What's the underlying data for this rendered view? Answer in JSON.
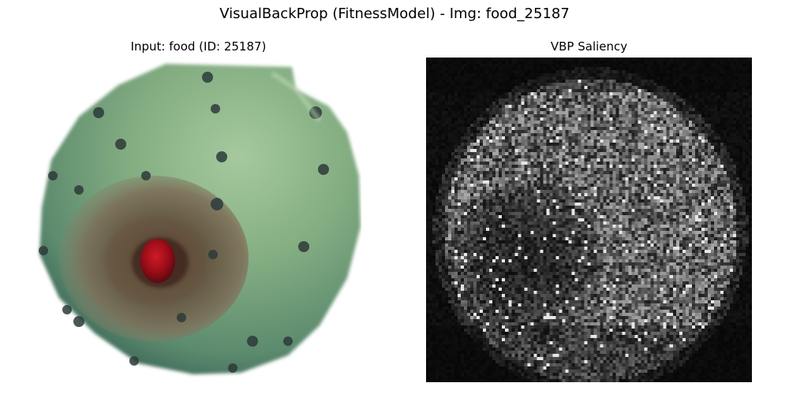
{
  "figure": {
    "title": "VisualBackProp (FitnessModel) - Img: food_25187"
  },
  "panels": {
    "input": {
      "title": "Input: food (ID: 25187)"
    },
    "saliency": {
      "title": "VBP Saliency"
    }
  },
  "colors": {
    "background": "#ffffff",
    "fruit_green": "#7fa77d",
    "fruit_highlight": "#a4c99c",
    "fruit_shadow": "#3f6a55",
    "crater_brown": "#6b5a44",
    "seed_red": "#a0101a",
    "saliency_background": "#050505",
    "saliency_bright": "#ffffff"
  }
}
